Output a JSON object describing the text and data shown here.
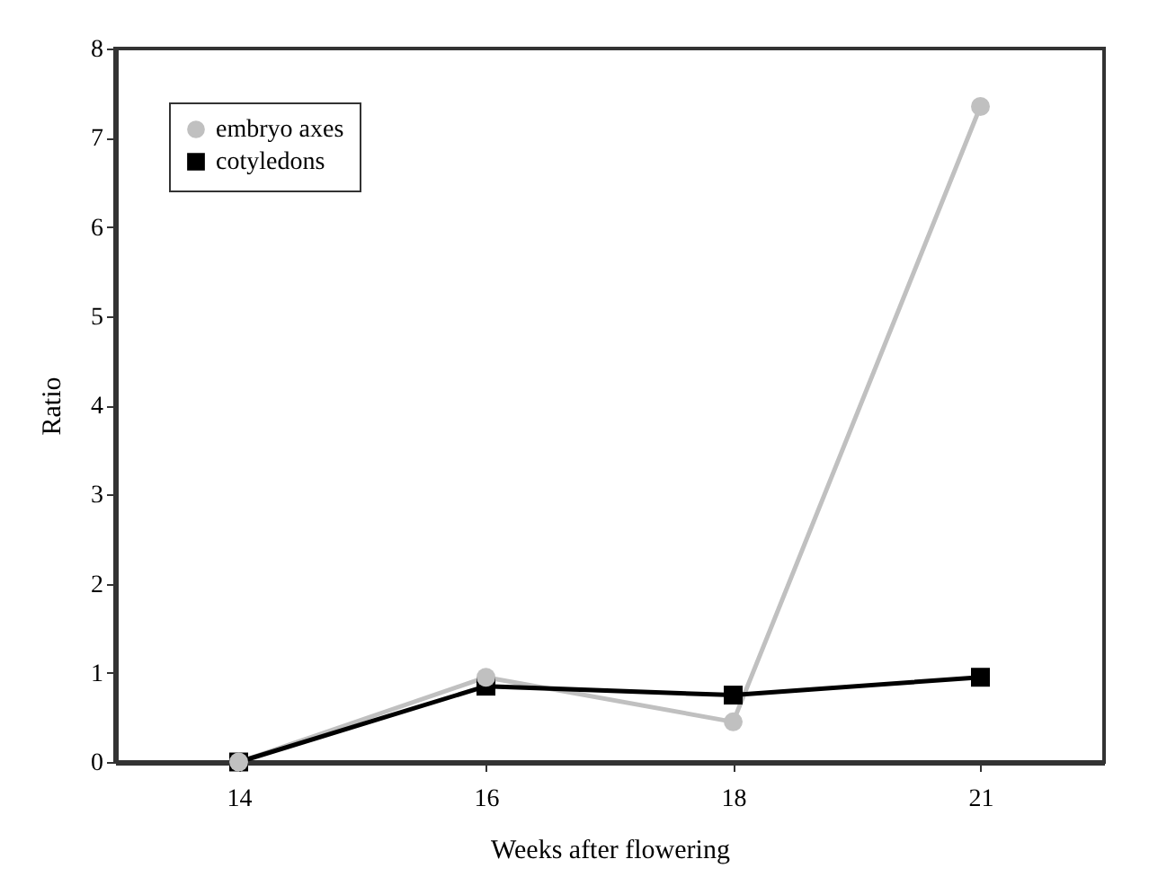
{
  "chart_data": {
    "type": "line",
    "xlabel": "Weeks after flowering",
    "ylabel": "Ratio",
    "categories": [
      "14",
      "16",
      "18",
      "21"
    ],
    "series": [
      {
        "name": "embryo axes",
        "color": "#c0c0c0",
        "marker": "circle",
        "values": [
          0,
          0.95,
          0.45,
          7.35
        ]
      },
      {
        "name": "cotyledons",
        "color": "#000000",
        "marker": "square",
        "values": [
          0,
          0.85,
          0.75,
          0.95
        ]
      }
    ],
    "ylim": [
      0,
      8
    ],
    "yticks": [
      0,
      1,
      2,
      3,
      4,
      5,
      6,
      7,
      8
    ],
    "grid": false,
    "legend": "top left",
    "line_style": "solid"
  }
}
